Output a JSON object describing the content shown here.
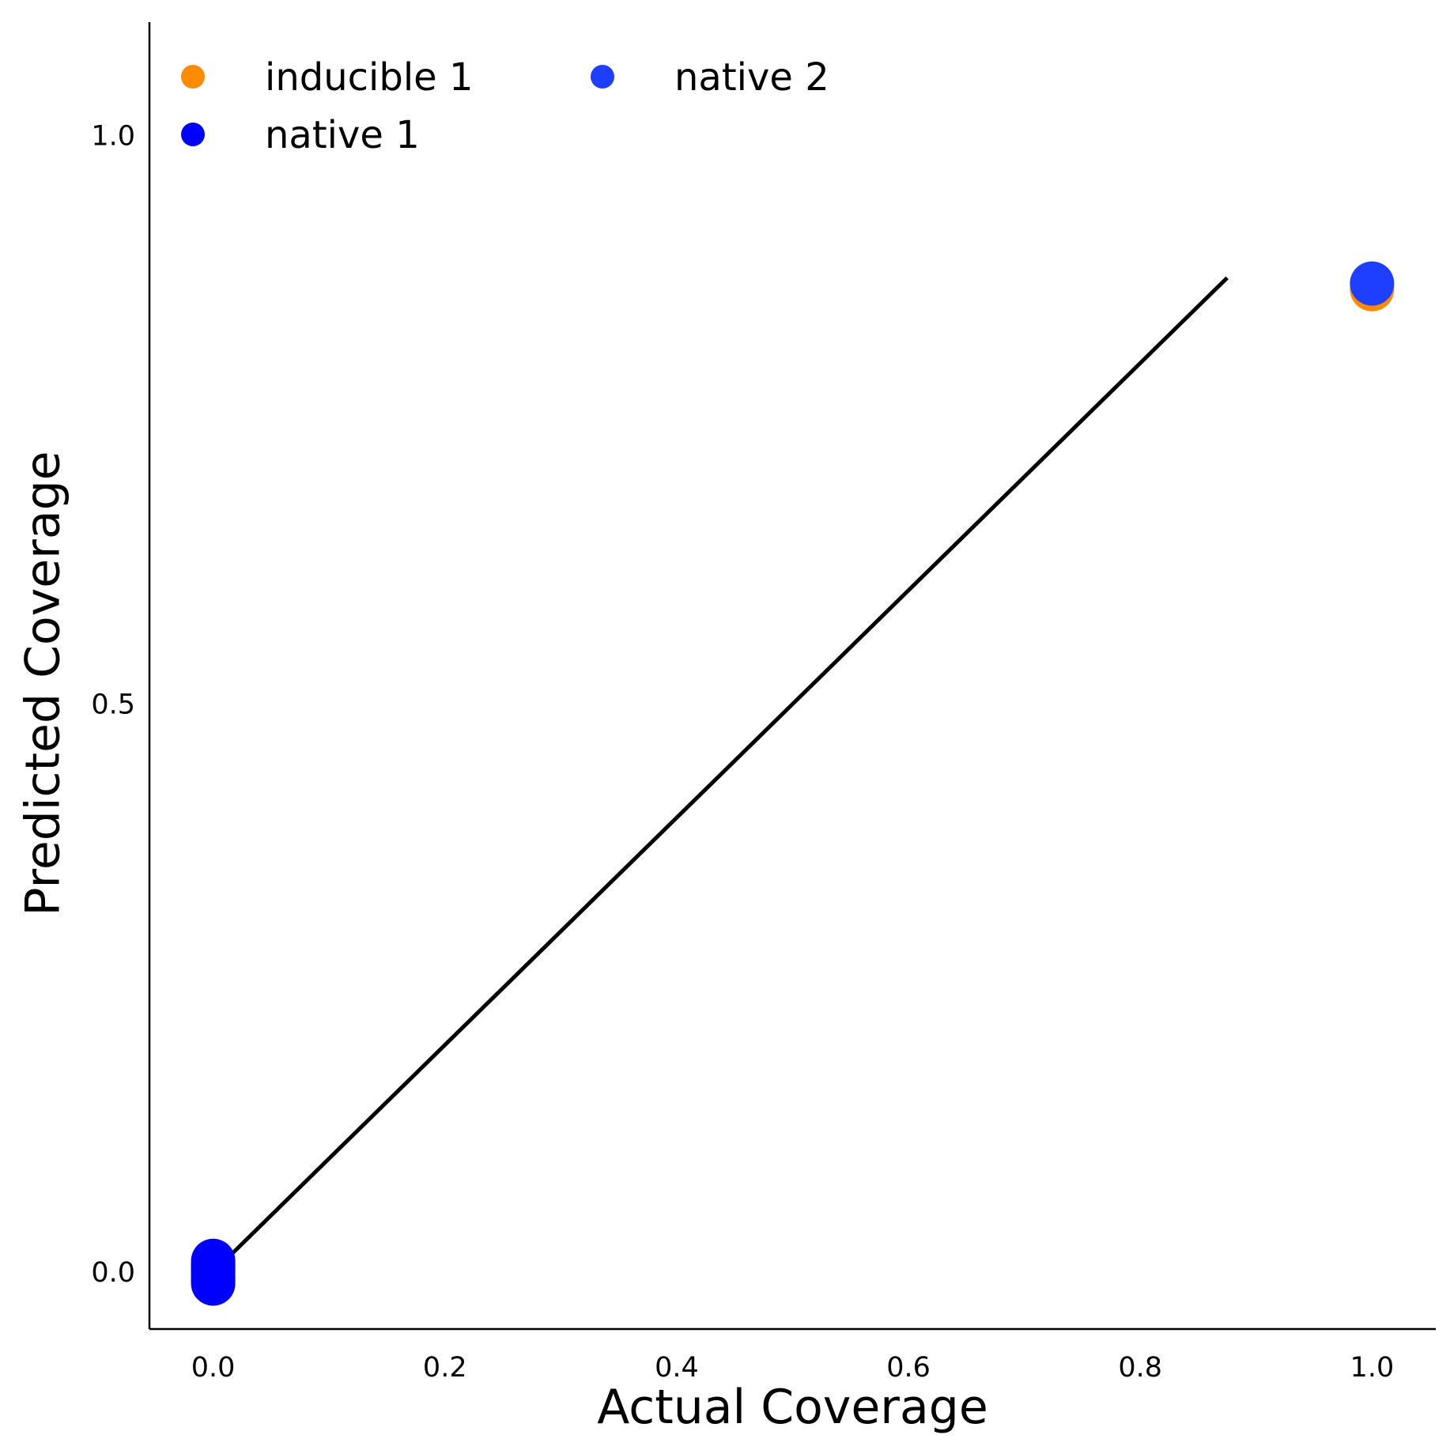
{
  "chart_data": {
    "type": "scatter",
    "title": "",
    "xlabel": "Actual Coverage",
    "ylabel": "Predicted Coverage",
    "xlim": [
      -0.055,
      1.055
    ],
    "ylim": [
      -0.05,
      1.1
    ],
    "x_ticks": [
      0.0,
      0.2,
      0.4,
      0.6,
      0.8,
      1.0
    ],
    "x_tick_labels": [
      "0.0",
      "0.2",
      "0.4",
      "0.6",
      "0.8",
      "1.0"
    ],
    "y_ticks": [
      0.0,
      0.5,
      1.0
    ],
    "y_tick_labels": [
      "0.0",
      "0.5",
      "1.0"
    ],
    "grid": false,
    "legend": {
      "position": "top-left",
      "columns": 2
    },
    "reference_line": {
      "x": [
        0.0,
        0.875
      ],
      "y": [
        0.0,
        0.875
      ],
      "color": "#000000"
    },
    "series": [
      {
        "name": "inducible 1",
        "color": "#FF8C00",
        "x": [
          0.0,
          0.0,
          0.0,
          1.0
        ],
        "y": [
          -0.005,
          0.0,
          0.005,
          0.865
        ]
      },
      {
        "name": "native 2",
        "color": "#1E3FFF",
        "x": [
          0.0,
          0.0,
          1.0
        ],
        "y": [
          -0.005,
          0.005,
          0.87
        ]
      },
      {
        "name": "native 1",
        "color": "#0000FF",
        "x": [
          0.0,
          0.0,
          0.0,
          0.0,
          0.0,
          0.0,
          0.0,
          0.0,
          0.0
        ],
        "y": [
          -0.01,
          -0.0075,
          -0.005,
          -0.0025,
          0.0,
          0.0025,
          0.005,
          0.0075,
          0.01
        ]
      }
    ],
    "legend_order": [
      "inducible 1",
      "native 1",
      "native 2"
    ]
  }
}
